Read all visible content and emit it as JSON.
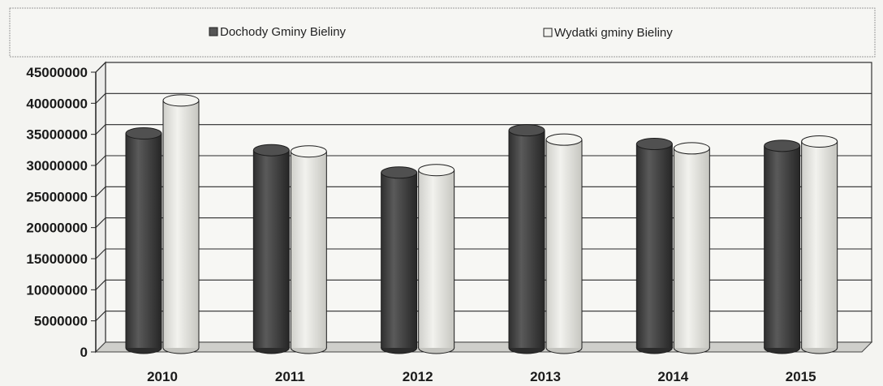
{
  "chart_data": {
    "type": "bar",
    "categories": [
      "2010",
      "2011",
      "2012",
      "2013",
      "2014",
      "2015"
    ],
    "series": [
      {
        "name": "Dochody Gminy Bieliny",
        "values": [
          34500000,
          31800000,
          28200000,
          35000000,
          32800000,
          32500000
        ]
      },
      {
        "name": "Wydatki gminy Bieliny",
        "values": [
          39800000,
          31600000,
          28600000,
          33500000,
          32100000,
          33200000
        ]
      }
    ],
    "ylim": [
      0,
      45000000
    ],
    "yticks": [
      "45000000",
      "40000000",
      "35000000",
      "30000000",
      "25000000",
      "20000000",
      "15000000",
      "10000000",
      "5000000",
      "0"
    ],
    "legend_position": "top",
    "grid": true,
    "colors": {
      "dochody": "#4a4a4a",
      "wydatki": "#e6e6e1"
    }
  }
}
